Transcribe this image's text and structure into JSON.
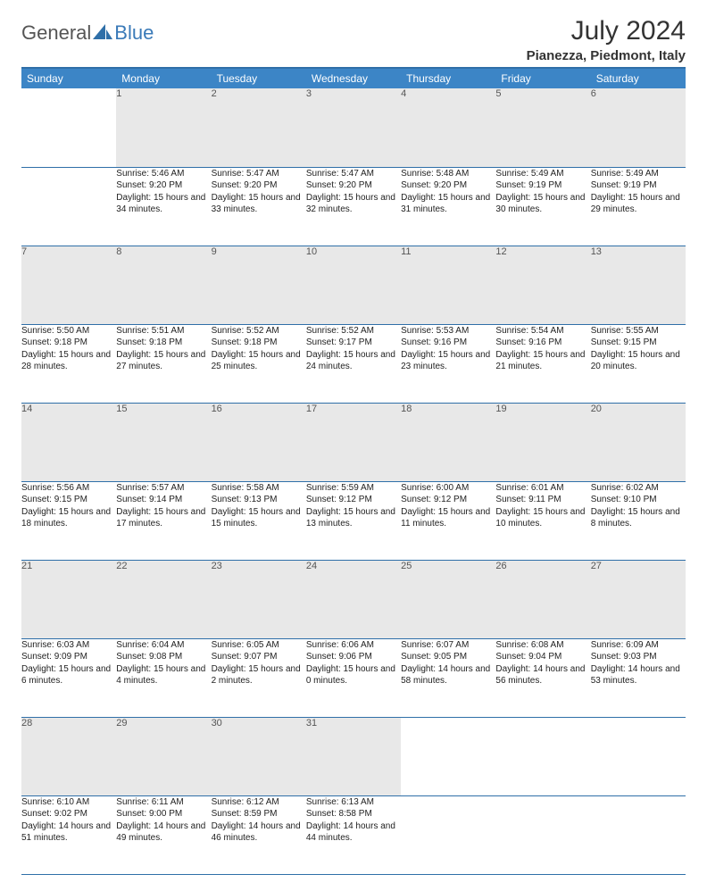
{
  "brand": {
    "part1": "General",
    "part2": "Blue"
  },
  "title": "July 2024",
  "location": "Pianezza, Piedmont, Italy",
  "colors": {
    "header_bg": "#3c85c6",
    "header_text": "#ffffff",
    "rule": "#2f6fa8",
    "daynum_bg": "#e8e8e8",
    "body_text": "#222222",
    "logo_gray": "#555555",
    "logo_blue": "#3a7ab8"
  },
  "weekdays": [
    "Sunday",
    "Monday",
    "Tuesday",
    "Wednesday",
    "Thursday",
    "Friday",
    "Saturday"
  ],
  "weeks": [
    [
      null,
      {
        "n": "1",
        "sunrise": "5:46 AM",
        "sunset": "9:20 PM",
        "daylight": "15 hours and 34 minutes."
      },
      {
        "n": "2",
        "sunrise": "5:47 AM",
        "sunset": "9:20 PM",
        "daylight": "15 hours and 33 minutes."
      },
      {
        "n": "3",
        "sunrise": "5:47 AM",
        "sunset": "9:20 PM",
        "daylight": "15 hours and 32 minutes."
      },
      {
        "n": "4",
        "sunrise": "5:48 AM",
        "sunset": "9:20 PM",
        "daylight": "15 hours and 31 minutes."
      },
      {
        "n": "5",
        "sunrise": "5:49 AM",
        "sunset": "9:19 PM",
        "daylight": "15 hours and 30 minutes."
      },
      {
        "n": "6",
        "sunrise": "5:49 AM",
        "sunset": "9:19 PM",
        "daylight": "15 hours and 29 minutes."
      }
    ],
    [
      {
        "n": "7",
        "sunrise": "5:50 AM",
        "sunset": "9:18 PM",
        "daylight": "15 hours and 28 minutes."
      },
      {
        "n": "8",
        "sunrise": "5:51 AM",
        "sunset": "9:18 PM",
        "daylight": "15 hours and 27 minutes."
      },
      {
        "n": "9",
        "sunrise": "5:52 AM",
        "sunset": "9:18 PM",
        "daylight": "15 hours and 25 minutes."
      },
      {
        "n": "10",
        "sunrise": "5:52 AM",
        "sunset": "9:17 PM",
        "daylight": "15 hours and 24 minutes."
      },
      {
        "n": "11",
        "sunrise": "5:53 AM",
        "sunset": "9:16 PM",
        "daylight": "15 hours and 23 minutes."
      },
      {
        "n": "12",
        "sunrise": "5:54 AM",
        "sunset": "9:16 PM",
        "daylight": "15 hours and 21 minutes."
      },
      {
        "n": "13",
        "sunrise": "5:55 AM",
        "sunset": "9:15 PM",
        "daylight": "15 hours and 20 minutes."
      }
    ],
    [
      {
        "n": "14",
        "sunrise": "5:56 AM",
        "sunset": "9:15 PM",
        "daylight": "15 hours and 18 minutes."
      },
      {
        "n": "15",
        "sunrise": "5:57 AM",
        "sunset": "9:14 PM",
        "daylight": "15 hours and 17 minutes."
      },
      {
        "n": "16",
        "sunrise": "5:58 AM",
        "sunset": "9:13 PM",
        "daylight": "15 hours and 15 minutes."
      },
      {
        "n": "17",
        "sunrise": "5:59 AM",
        "sunset": "9:12 PM",
        "daylight": "15 hours and 13 minutes."
      },
      {
        "n": "18",
        "sunrise": "6:00 AM",
        "sunset": "9:12 PM",
        "daylight": "15 hours and 11 minutes."
      },
      {
        "n": "19",
        "sunrise": "6:01 AM",
        "sunset": "9:11 PM",
        "daylight": "15 hours and 10 minutes."
      },
      {
        "n": "20",
        "sunrise": "6:02 AM",
        "sunset": "9:10 PM",
        "daylight": "15 hours and 8 minutes."
      }
    ],
    [
      {
        "n": "21",
        "sunrise": "6:03 AM",
        "sunset": "9:09 PM",
        "daylight": "15 hours and 6 minutes."
      },
      {
        "n": "22",
        "sunrise": "6:04 AM",
        "sunset": "9:08 PM",
        "daylight": "15 hours and 4 minutes."
      },
      {
        "n": "23",
        "sunrise": "6:05 AM",
        "sunset": "9:07 PM",
        "daylight": "15 hours and 2 minutes."
      },
      {
        "n": "24",
        "sunrise": "6:06 AM",
        "sunset": "9:06 PM",
        "daylight": "15 hours and 0 minutes."
      },
      {
        "n": "25",
        "sunrise": "6:07 AM",
        "sunset": "9:05 PM",
        "daylight": "14 hours and 58 minutes."
      },
      {
        "n": "26",
        "sunrise": "6:08 AM",
        "sunset": "9:04 PM",
        "daylight": "14 hours and 56 minutes."
      },
      {
        "n": "27",
        "sunrise": "6:09 AM",
        "sunset": "9:03 PM",
        "daylight": "14 hours and 53 minutes."
      }
    ],
    [
      {
        "n": "28",
        "sunrise": "6:10 AM",
        "sunset": "9:02 PM",
        "daylight": "14 hours and 51 minutes."
      },
      {
        "n": "29",
        "sunrise": "6:11 AM",
        "sunset": "9:00 PM",
        "daylight": "14 hours and 49 minutes."
      },
      {
        "n": "30",
        "sunrise": "6:12 AM",
        "sunset": "8:59 PM",
        "daylight": "14 hours and 46 minutes."
      },
      {
        "n": "31",
        "sunrise": "6:13 AM",
        "sunset": "8:58 PM",
        "daylight": "14 hours and 44 minutes."
      },
      null,
      null,
      null
    ]
  ],
  "labels": {
    "sunrise": "Sunrise:",
    "sunset": "Sunset:",
    "daylight": "Daylight:"
  }
}
